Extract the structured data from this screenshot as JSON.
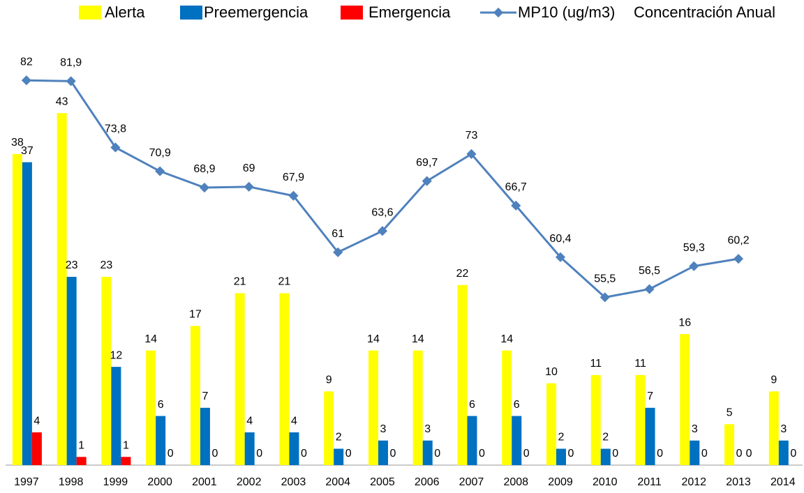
{
  "chart_data": {
    "type": "bar-line",
    "legend_note": "Concentración Anual",
    "categories": [
      "1997",
      "1998",
      "1999",
      "2000",
      "2001",
      "2002",
      "2003",
      "2004",
      "2005",
      "2006",
      "2007",
      "2008",
      "2009",
      "2010",
      "2011",
      "2012",
      "2013",
      "2014"
    ],
    "series": [
      {
        "name": "Alerta",
        "color": "#ffff00",
        "type": "bar",
        "values": [
          38,
          43,
          23,
          14,
          17,
          21,
          21,
          9,
          14,
          14,
          22,
          14,
          10,
          11,
          11,
          16,
          5,
          9
        ]
      },
      {
        "name": "Preemergencia",
        "color": "#0070c0",
        "type": "bar",
        "values": [
          37,
          23,
          12,
          6,
          7,
          4,
          4,
          2,
          3,
          3,
          6,
          6,
          2,
          2,
          7,
          3,
          0,
          3
        ]
      },
      {
        "name": "Emergencia",
        "color": "#ff0000",
        "type": "bar",
        "values": [
          4,
          1,
          1,
          0,
          0,
          0,
          0,
          0,
          0,
          0,
          0,
          0,
          0,
          0,
          0,
          0,
          0,
          0
        ]
      },
      {
        "name": "MP10 (ug/m3)",
        "color": "#4f81bd",
        "type": "line",
        "axis": "y2",
        "values": [
          82,
          81.9,
          73.8,
          70.9,
          68.9,
          69,
          67.9,
          61,
          63.6,
          69.7,
          73,
          66.7,
          60.4,
          55.5,
          56.5,
          59.3,
          60.2,
          null
        ],
        "value_labels": [
          "82",
          "81,9",
          "73,8",
          "70,9",
          "68,9",
          "69",
          "67,9",
          "61",
          "63,6",
          "69,7",
          "73",
          "66,7",
          "60,4",
          "55,5",
          "56,5",
          "59,3",
          "60,2",
          null
        ]
      }
    ],
    "ylim": [
      0,
      50
    ],
    "y2lim": [
      35,
      85
    ],
    "grid": false
  }
}
